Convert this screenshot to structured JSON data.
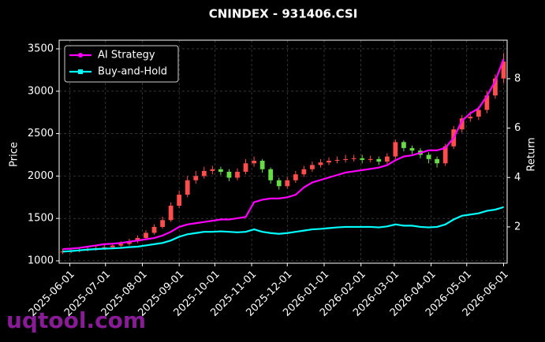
{
  "chart_data": {
    "type": "candlestick",
    "title": "CNINDEX - 931406.CSI",
    "ylabel": "Price",
    "y2label": "Return",
    "x": [
      "2025-05-26",
      "2025-06-02",
      "2025-06-09",
      "2025-06-16",
      "2025-06-23",
      "2025-06-30",
      "2025-07-07",
      "2025-07-14",
      "2025-07-21",
      "2025-07-28",
      "2025-08-04",
      "2025-08-11",
      "2025-08-18",
      "2025-08-25",
      "2025-09-01",
      "2025-09-08",
      "2025-09-15",
      "2025-09-22",
      "2025-09-29",
      "2025-10-06",
      "2025-10-13",
      "2025-10-20",
      "2025-10-27",
      "2025-11-03",
      "2025-11-10",
      "2025-11-17",
      "2025-11-24",
      "2025-12-01",
      "2025-12-08",
      "2025-12-15",
      "2025-12-22",
      "2025-12-29",
      "2026-01-05",
      "2026-01-12",
      "2026-01-19",
      "2026-01-26",
      "2026-02-02",
      "2026-02-09",
      "2026-02-16",
      "2026-02-23",
      "2026-03-02",
      "2026-03-09",
      "2026-03-16",
      "2026-03-23",
      "2026-03-30",
      "2026-04-06",
      "2026-04-13",
      "2026-04-20",
      "2026-04-27",
      "2026-05-04",
      "2026-05-11",
      "2026-05-18",
      "2026-05-25",
      "2026-06-01"
    ],
    "open": [
      1100,
      1110,
      1120,
      1130,
      1140,
      1150,
      1160,
      1180,
      1200,
      1230,
      1270,
      1330,
      1400,
      1480,
      1650,
      1780,
      1950,
      2000,
      2060,
      2080,
      2050,
      1980,
      2050,
      2150,
      2180,
      2080,
      1950,
      1880,
      1950,
      2020,
      2080,
      2130,
      2160,
      2180,
      2190,
      2200,
      2210,
      2190,
      2200,
      2170,
      2230,
      2400,
      2330,
      2300,
      2250,
      2200,
      2150,
      2350,
      2550,
      2680,
      2700,
      2780,
      2950,
      3150
    ],
    "high": [
      1140,
      1150,
      1160,
      1170,
      1180,
      1190,
      1210,
      1230,
      1260,
      1300,
      1360,
      1430,
      1520,
      1690,
      1830,
      2000,
      2060,
      2110,
      2120,
      2110,
      2080,
      2090,
      2200,
      2230,
      2200,
      2100,
      1980,
      1990,
      2060,
      2120,
      2170,
      2200,
      2220,
      2230,
      2250,
      2250,
      2250,
      2240,
      2230,
      2270,
      2430,
      2420,
      2360,
      2330,
      2280,
      2230,
      2380,
      2590,
      2720,
      2760,
      2820,
      3000,
      3200,
      3450
    ],
    "low": [
      1080,
      1090,
      1100,
      1110,
      1120,
      1130,
      1140,
      1160,
      1180,
      1210,
      1250,
      1310,
      1380,
      1460,
      1620,
      1750,
      1910,
      1970,
      2020,
      2010,
      1940,
      1950,
      2020,
      2110,
      2040,
      1910,
      1840,
      1850,
      1920,
      1990,
      2050,
      2100,
      2130,
      2150,
      2160,
      2170,
      2150,
      2160,
      2130,
      2140,
      2200,
      2290,
      2260,
      2210,
      2150,
      2100,
      2120,
      2320,
      2510,
      2640,
      2660,
      2740,
      2910,
      3100
    ],
    "close": [
      1110,
      1120,
      1130,
      1140,
      1150,
      1160,
      1180,
      1200,
      1230,
      1270,
      1330,
      1400,
      1480,
      1650,
      1780,
      1950,
      2000,
      2060,
      2080,
      2050,
      1980,
      2050,
      2150,
      2180,
      2080,
      1950,
      1880,
      1950,
      2020,
      2080,
      2130,
      2160,
      2180,
      2190,
      2200,
      2210,
      2190,
      2200,
      2170,
      2230,
      2400,
      2330,
      2300,
      2250,
      2200,
      2150,
      2350,
      2550,
      2680,
      2700,
      2780,
      2950,
      3150,
      3350
    ],
    "up_color": "#ff4d4d",
    "down_color": "#66dd44",
    "series": [
      {
        "name": "AI Strategy",
        "color": "#ff00ff",
        "marker": "circle",
        "axis": "y2",
        "values": [
          1.1,
          1.12,
          1.15,
          1.2,
          1.25,
          1.3,
          1.32,
          1.35,
          1.4,
          1.45,
          1.5,
          1.55,
          1.65,
          1.8,
          2.0,
          2.1,
          2.15,
          2.2,
          2.25,
          2.3,
          2.3,
          2.35,
          2.4,
          3.0,
          3.1,
          3.15,
          3.15,
          3.2,
          3.3,
          3.6,
          3.8,
          3.9,
          4.0,
          4.1,
          4.2,
          4.25,
          4.3,
          4.35,
          4.4,
          4.5,
          4.7,
          4.85,
          4.9,
          5.0,
          5.1,
          5.1,
          5.2,
          5.6,
          6.3,
          6.6,
          6.8,
          7.3,
          7.9,
          8.8
        ]
      },
      {
        "name": "Buy-and-Hold",
        "color": "#00ffff",
        "marker": "square",
        "axis": "y2",
        "values": [
          1.0,
          1.02,
          1.05,
          1.08,
          1.1,
          1.12,
          1.13,
          1.15,
          1.18,
          1.2,
          1.25,
          1.3,
          1.35,
          1.45,
          1.6,
          1.7,
          1.75,
          1.8,
          1.8,
          1.82,
          1.8,
          1.78,
          1.8,
          1.9,
          1.8,
          1.75,
          1.72,
          1.75,
          1.8,
          1.85,
          1.9,
          1.92,
          1.95,
          1.98,
          2.0,
          2.0,
          2.0,
          2.0,
          1.98,
          2.02,
          2.1,
          2.05,
          2.05,
          2.0,
          1.98,
          2.0,
          2.1,
          2.3,
          2.45,
          2.5,
          2.55,
          2.65,
          2.7,
          2.8
        ]
      }
    ],
    "xlim": [
      "2025-05-23",
      "2026-06-04"
    ],
    "xticks": [
      "2025-06-01",
      "2025-07-01",
      "2025-08-01",
      "2025-09-01",
      "2025-10-01",
      "2025-11-01",
      "2025-12-01",
      "2026-01-01",
      "2026-02-01",
      "2026-03-01",
      "2026-04-01",
      "2026-05-01",
      "2026-06-01"
    ],
    "ylim": [
      972,
      3602
    ],
    "yticks": [
      1000,
      1500,
      2000,
      2500,
      3000,
      3500
    ],
    "y2lim": [
      0.53,
      9.56
    ],
    "y2ticks": [
      2,
      4,
      6,
      8
    ],
    "grid": true,
    "legend": "upper left"
  },
  "watermark": "uqtool.com"
}
